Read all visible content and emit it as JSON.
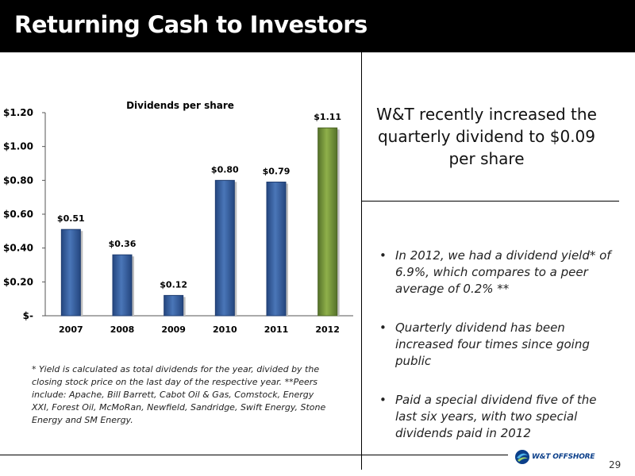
{
  "slide": {
    "title": "Returning Cash to Investors",
    "headline": "W&T recently increased the quarterly dividend to $0.09 per share",
    "bullets": [
      "In 2012, we had a dividend yield* of 6.9%, which compares to a peer average of 0.2% **",
      "Quarterly dividend has been increased four times since going public",
      "Paid a special dividend five of the last six years, with two special dividends paid in 2012"
    ],
    "footnote": "* Yield is calculated as total dividends for the year, divided by the closing stock price on the last day of the respective year.  **Peers include: Apache, Bill Barrett, Cabot Oil & Gas, Comstock, Energy XXI, Forest Oil, McMoRan, Newfield, Sandridge, Swift Energy, Stone Energy and SM Energy.",
    "logo_text": "W&T OFFSHORE",
    "page_number": "29"
  },
  "chart_data": {
    "type": "bar",
    "title": "Dividends per share",
    "categories": [
      "2007",
      "2008",
      "2009",
      "2010",
      "2011",
      "2012"
    ],
    "values": [
      0.51,
      0.36,
      0.12,
      0.8,
      0.79,
      1.11
    ],
    "data_labels": [
      "$0.51",
      "$0.36",
      "$0.12",
      "$0.80",
      "$0.79",
      "$1.11"
    ],
    "ytick_labels": [
      "$-",
      "$0.20",
      "$0.40",
      "$0.60",
      "$0.80",
      "$1.00",
      "$1.20"
    ],
    "ylim": [
      0,
      1.2
    ],
    "xlabel": "",
    "ylabel": "",
    "grid": false,
    "legend": "none",
    "colors": {
      "bar": "#3b63a3",
      "bar_highlight": "#7a9a3c"
    }
  }
}
